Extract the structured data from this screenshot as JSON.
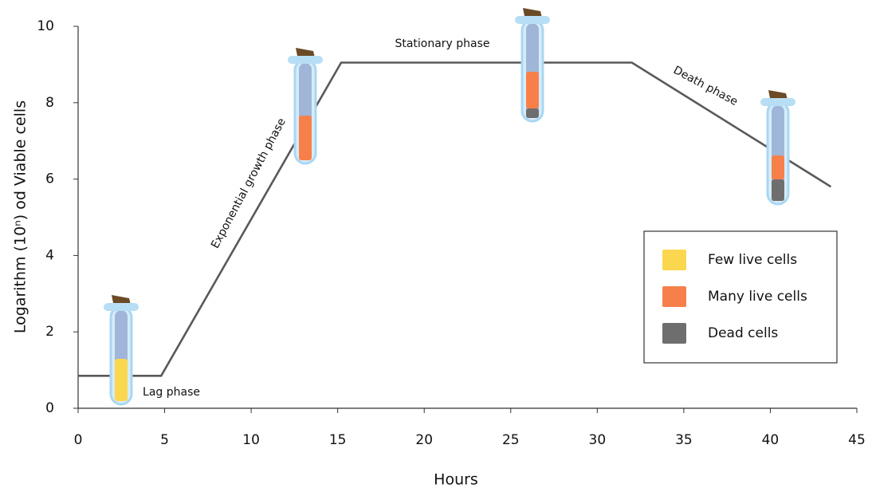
{
  "chart_data": {
    "type": "line",
    "x_label": "Hours",
    "y_label": "Logarithm (10ⁿ) od Viable cells",
    "x": [
      0,
      4.8,
      15.2,
      32,
      43.5
    ],
    "series": [
      {
        "color": "#595959",
        "values": [
          0.85,
          0.85,
          9.05,
          9.05,
          5.8
        ]
      }
    ],
    "xlim": [
      0,
      45
    ],
    "xticks": [
      0,
      5,
      10,
      15,
      20,
      25,
      30,
      35,
      40,
      45
    ],
    "ylim": [
      0,
      10
    ],
    "yticks": [
      0,
      2,
      4,
      6,
      8,
      10
    ],
    "grid": false,
    "annotations": [
      "Lag phase",
      "Exponential growth phase",
      "Stationary phase",
      "Death phase"
    ],
    "legend_position": "lower right",
    "legend": [
      {
        "label": "Few live cells",
        "color": "#fbd74f"
      },
      {
        "label": "Many live cells",
        "color": "#f7804a"
      },
      {
        "label": "Dead cells",
        "color": "#6e6e6e"
      }
    ]
  }
}
